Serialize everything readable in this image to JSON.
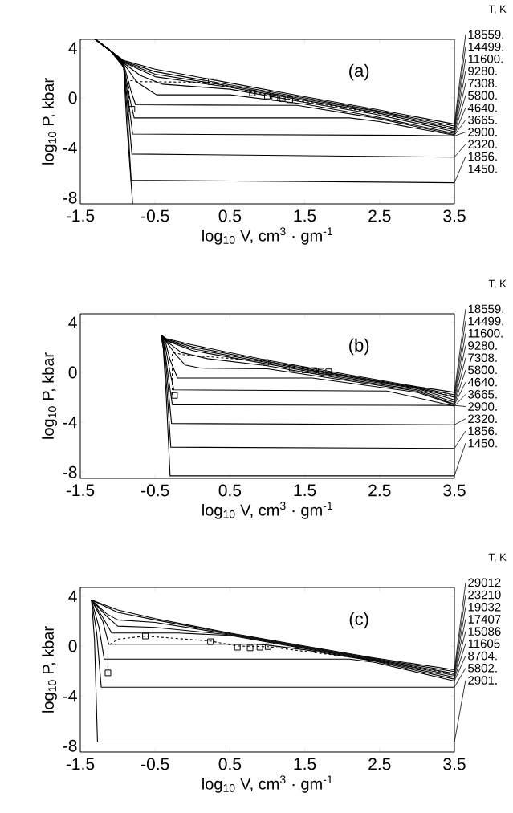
{
  "chart_data": [
    {
      "type": "line",
      "legend": "right",
      "annotations": [
        "(a)"
      ],
      "xlabel": "log$_{10}$ V, cm$^{3}$ · gm$^{-1}$",
      "ylabel": "log$_{10}$ P, kbar",
      "legend_title": "T, K",
      "xlim": [
        -1.5,
        3.5
      ],
      "ylim": [
        -8.5,
        4.7
      ],
      "xticks": [
        -1.5,
        -0.5,
        0.5,
        1.5,
        2.5,
        3.5
      ],
      "yticks": [
        -8,
        -4,
        0,
        4
      ],
      "series": [
        {
          "name": "18559.",
          "color": "#000000",
          "x": [
            -1.3,
            -1.1,
            -0.92,
            -0.5,
            0.5,
            1.5,
            2.44,
            3.5
          ],
          "values": [
            4.7,
            3.8,
            3.0,
            2.3,
            1.2,
            0.1,
            -0.9,
            -2.1
          ]
        },
        {
          "name": "14499.",
          "color": "#000000",
          "x": [
            -1.3,
            -1.1,
            -0.92,
            -0.5,
            0.5,
            1.5,
            2.44,
            3.5
          ],
          "values": [
            4.7,
            3.8,
            2.95,
            2.1,
            1.05,
            0.0,
            -1.0,
            -2.25
          ]
        },
        {
          "name": "11600.",
          "color": "#000000",
          "x": [
            -1.3,
            -1.1,
            -0.92,
            -0.5,
            0.5,
            1.5,
            2.44,
            3.5
          ],
          "values": [
            4.7,
            3.8,
            2.9,
            1.9,
            0.95,
            -0.1,
            -1.05,
            -2.4
          ]
        },
        {
          "name": "9280.",
          "color": "#000000",
          "x": [
            -1.3,
            -1.1,
            -0.92,
            -0.5,
            0.5,
            1.5,
            2.44,
            3.5
          ],
          "values": [
            4.7,
            3.8,
            2.85,
            1.7,
            0.85,
            -0.2,
            -1.15,
            -2.55
          ]
        },
        {
          "name": "7308.",
          "color": "#000000",
          "x": [
            -1.3,
            -1.1,
            -0.92,
            -0.7,
            -0.4,
            0.5,
            1.5,
            2.44,
            3.5
          ],
          "values": [
            4.7,
            3.8,
            2.8,
            1.8,
            1.1,
            0.7,
            -0.35,
            -1.3,
            -2.7
          ]
        },
        {
          "name": "5800.",
          "color": "#000000",
          "x": [
            -1.3,
            -1.1,
            -0.92,
            -0.75,
            -0.55,
            -0.48,
            0.5,
            1.5,
            2.44,
            3.5
          ],
          "values": [
            4.7,
            3.8,
            2.75,
            1.3,
            0.5,
            0.25,
            0.25,
            -0.5,
            -1.5,
            -2.85
          ]
        },
        {
          "name": "4640.",
          "color": "#000000",
          "x": [
            -1.3,
            -1.1,
            -0.92,
            -0.82,
            -0.76,
            1.4,
            2.44,
            3.5
          ],
          "values": [
            4.7,
            3.8,
            2.7,
            0.5,
            -0.55,
            -0.6,
            -1.6,
            -2.95
          ]
        },
        {
          "name": "3665.",
          "color": "#000000",
          "x": [
            -1.3,
            -1.1,
            -0.92,
            -0.84,
            -0.78,
            2.1,
            2.5,
            3.5
          ],
          "values": [
            4.7,
            3.8,
            2.65,
            0.0,
            -1.6,
            -1.6,
            -1.9,
            -3.0
          ]
        },
        {
          "name": "2900.",
          "color": "#000000",
          "x": [
            -1.3,
            -1.1,
            -0.92,
            -0.85,
            -0.8,
            2.9,
            3.5
          ],
          "values": [
            4.7,
            3.8,
            2.6,
            -0.5,
            -2.9,
            -3.0,
            -3.05
          ]
        },
        {
          "name": "2320.",
          "color": "#000000",
          "x": [
            -1.3,
            -1.1,
            -0.92,
            -0.86,
            -0.81,
            3.5
          ],
          "values": [
            4.7,
            3.8,
            2.55,
            -1.0,
            -4.5,
            -4.75
          ]
        },
        {
          "name": "1856.",
          "color": "#000000",
          "x": [
            -1.3,
            -1.1,
            -0.92,
            -0.87,
            -0.82,
            3.5
          ],
          "values": [
            4.7,
            3.8,
            2.5,
            -1.5,
            -6.6,
            -6.8
          ]
        },
        {
          "name": "1450.",
          "color": "#000000",
          "x": [
            -1.3,
            -1.1,
            -0.92,
            -0.88,
            -0.8
          ],
          "values": [
            4.7,
            3.8,
            2.45,
            -2.0,
            -8.5
          ]
        },
        {
          "type": "line",
          "line_style": "dashed",
          "color": "#000000",
          "x": [
            -0.85,
            -0.85,
            -0.7,
            0.25,
            0.8,
            1.3,
            2.44,
            3.5
          ],
          "values": [
            -0.8,
            1.4,
            1.3,
            1.25,
            0.45,
            -0.1,
            -1.2,
            -2.5
          ]
        },
        {
          "type": "scatter",
          "marker": "square",
          "color": "#000000",
          "x": [
            -0.81,
            0.25,
            0.8,
            1.0,
            1.1,
            1.2,
            1.3
          ],
          "values": [
            -0.9,
            1.3,
            0.4,
            0.15,
            0.05,
            -0.05,
            -0.15
          ]
        }
      ]
    },
    {
      "type": "line",
      "legend": "right",
      "annotations": [
        "(b)"
      ],
      "xlabel": "log$_{10}$ V, cm$^{3}$ · gm$^{-1}$",
      "ylabel": "log$_{10}$ P, kbar",
      "legend_title": "T, K",
      "xlim": [
        -1.5,
        3.5
      ],
      "ylim": [
        -8.5,
        4.7
      ],
      "xticks": [
        -1.5,
        -0.5,
        0.5,
        1.5,
        2.5,
        3.5
      ],
      "yticks": [
        -8,
        -4,
        0,
        4
      ],
      "series": [
        {
          "name": "18559.",
          "color": "#000000",
          "x": [
            -0.42,
            -0.35,
            0.0,
            0.98,
            2.0,
            3.0,
            3.5
          ],
          "values": [
            3.0,
            2.7,
            2.2,
            1.0,
            -0.1,
            -1.15,
            -1.6
          ]
        },
        {
          "name": "14499.",
          "color": "#000000",
          "x": [
            -0.42,
            -0.35,
            0.0,
            0.98,
            2.0,
            3.0,
            3.5
          ],
          "values": [
            3.0,
            2.65,
            2.05,
            0.9,
            -0.2,
            -1.2,
            -1.8
          ]
        },
        {
          "name": "11600.",
          "color": "#000000",
          "x": [
            -0.42,
            -0.35,
            0.0,
            0.98,
            2.0,
            3.0,
            3.5
          ],
          "values": [
            3.0,
            2.6,
            1.9,
            0.8,
            -0.3,
            -1.25,
            -2.0
          ]
        },
        {
          "name": "9280.",
          "color": "#000000",
          "x": [
            -0.42,
            -0.35,
            0.0,
            0.98,
            2.0,
            3.0,
            3.5
          ],
          "values": [
            3.0,
            2.55,
            1.75,
            0.7,
            -0.4,
            -1.3,
            -2.2
          ]
        },
        {
          "name": "7308.",
          "color": "#000000",
          "x": [
            -0.42,
            -0.35,
            -0.15,
            0.2,
            0.98,
            2.0,
            3.0,
            3.5
          ],
          "values": [
            3.0,
            2.5,
            1.6,
            1.1,
            0.55,
            -0.5,
            -1.4,
            -2.4
          ]
        },
        {
          "name": "5800.",
          "color": "#000000",
          "x": [
            -0.42,
            -0.35,
            -0.22,
            -0.1,
            0.1,
            0.98,
            2.0,
            3.0,
            3.5
          ],
          "values": [
            3.0,
            2.45,
            1.4,
            0.6,
            0.35,
            0.3,
            -0.6,
            -1.5,
            -2.55
          ]
        },
        {
          "name": "4640.",
          "color": "#000000",
          "x": [
            -0.42,
            -0.36,
            -0.3,
            -0.2,
            1.6,
            3.0,
            3.5
          ],
          "values": [
            3.0,
            2.4,
            1.0,
            -0.45,
            -0.45,
            -1.6,
            -2.6
          ]
        },
        {
          "name": "3665.",
          "color": "#000000",
          "x": [
            -0.42,
            -0.37,
            -0.3,
            -0.25,
            2.6,
            3.5
          ],
          "values": [
            3.0,
            2.3,
            0.0,
            -1.4,
            -1.5,
            -2.7
          ]
        },
        {
          "name": "2900.",
          "color": "#000000",
          "x": [
            -0.42,
            -0.38,
            -0.32,
            -0.27,
            3.5
          ],
          "values": [
            3.0,
            2.2,
            -0.5,
            -2.6,
            -2.65
          ]
        },
        {
          "name": "2320.",
          "color": "#000000",
          "x": [
            -0.42,
            -0.38,
            -0.33,
            -0.28,
            3.5
          ],
          "values": [
            3.0,
            2.1,
            -1.0,
            -4.1,
            -4.2
          ]
        },
        {
          "name": "1856.",
          "color": "#000000",
          "x": [
            -0.42,
            -0.39,
            -0.34,
            -0.29,
            3.5
          ],
          "values": [
            3.0,
            2.0,
            -1.5,
            -6.0,
            -6.1
          ]
        },
        {
          "name": "1450.",
          "color": "#000000",
          "x": [
            -0.42,
            -0.39,
            -0.35,
            -0.3,
            3.5
          ],
          "values": [
            3.0,
            1.9,
            -2.0,
            -8.3,
            -8.3
          ]
        },
        {
          "type": "line",
          "line_style": "dashed",
          "color": "#000000",
          "x": [
            -0.27,
            -0.27,
            -0.1,
            0.98,
            1.5,
            2.2,
            3.0,
            3.5
          ],
          "values": [
            -1.8,
            1.6,
            1.4,
            0.9,
            0.25,
            -0.4,
            -1.3,
            -1.9
          ]
        },
        {
          "type": "scatter",
          "marker": "square",
          "color": "#000000",
          "x": [
            -0.24,
            0.98,
            1.33,
            1.5,
            1.62,
            1.72,
            1.82
          ],
          "values": [
            -1.85,
            0.8,
            0.35,
            0.2,
            0.15,
            0.1,
            0.05
          ]
        }
      ]
    },
    {
      "type": "line",
      "legend": "right",
      "annotations": [
        "(c)"
      ],
      "xlabel": "log$_{10}$ V, cm$^{3}$ · gm$^{-1}$",
      "ylabel": "log$_{10}$ P, kbar",
      "legend_title": "T, K",
      "xlim": [
        -1.5,
        3.5
      ],
      "ylim": [
        -8.5,
        4.7
      ],
      "xticks": [
        -1.5,
        -0.5,
        0.5,
        1.5,
        2.5,
        3.5
      ],
      "yticks": [
        -8,
        -4,
        0,
        4
      ],
      "series": [
        {
          "name": "29012",
          "color": "#000000",
          "x": [
            -1.35,
            -1.0,
            -0.5,
            0.5,
            1.5,
            2.43,
            3.5
          ],
          "values": [
            3.7,
            2.9,
            2.2,
            1.05,
            0.0,
            -0.95,
            -1.9
          ]
        },
        {
          "name": "23210",
          "color": "#000000",
          "x": [
            -1.35,
            -1.0,
            -0.5,
            0.5,
            1.5,
            2.43,
            3.5
          ],
          "values": [
            3.7,
            2.7,
            2.1,
            1.0,
            -0.05,
            -1.0,
            -2.05
          ]
        },
        {
          "name": "19032",
          "color": "#000000",
          "x": [
            -1.35,
            -1.15,
            -1.0,
            -0.5,
            0.5,
            1.5,
            2.43,
            3.5
          ],
          "values": [
            3.7,
            2.6,
            2.1,
            1.9,
            0.95,
            -0.1,
            -1.05,
            -2.2
          ]
        },
        {
          "name": "17407",
          "color": "#000000",
          "x": [
            -1.35,
            -1.15,
            -1.0,
            -0.5,
            0.5,
            1.5,
            2.43,
            3.5
          ],
          "values": [
            3.7,
            2.4,
            1.6,
            1.5,
            0.9,
            -0.15,
            -1.1,
            -2.35
          ]
        },
        {
          "name": "15086",
          "color": "#000000",
          "x": [
            -1.35,
            -1.2,
            -1.08,
            -0.2,
            0.5,
            1.5,
            2.43,
            3.5
          ],
          "values": [
            3.7,
            2.3,
            1.05,
            1.05,
            0.85,
            -0.2,
            -1.15,
            -2.5
          ]
        },
        {
          "name": "11605",
          "color": "#000000",
          "x": [
            -1.35,
            -1.2,
            -1.12,
            0.9,
            1.5,
            2.43,
            3.5
          ],
          "values": [
            3.7,
            2.0,
            0.15,
            0.15,
            -0.3,
            -1.2,
            -2.65
          ]
        },
        {
          "name": "8704.",
          "color": "#000000",
          "x": [
            -1.35,
            -1.25,
            -1.18,
            2.1,
            2.43,
            3.5
          ],
          "values": [
            3.7,
            1.5,
            -1.05,
            -1.05,
            -1.3,
            -2.8
          ]
        },
        {
          "name": "5802.",
          "color": "#000000",
          "x": [
            -1.35,
            -1.28,
            -1.22,
            3.5
          ],
          "values": [
            3.7,
            1.0,
            -3.3,
            -3.3
          ]
        },
        {
          "name": "2901.",
          "color": "#000000",
          "x": [
            -1.35,
            -1.31,
            -1.27,
            3.5
          ],
          "values": [
            3.7,
            0.5,
            -7.7,
            -7.7
          ]
        },
        {
          "type": "line",
          "line_style": "dashed",
          "color": "#000000",
          "x": [
            -1.13,
            -1.13,
            -1.0,
            -0.63,
            0.24,
            0.6,
            1.0,
            2.0,
            2.43,
            3.5
          ],
          "values": [
            -2.1,
            0.0,
            0.55,
            0.8,
            0.4,
            0.0,
            -0.05,
            -0.8,
            -1.1,
            -2.27
          ]
        },
        {
          "type": "scatter",
          "marker": "square",
          "color": "#000000",
          "x": [
            -1.13,
            -0.63,
            0.24,
            0.6,
            0.77,
            0.9,
            1.01
          ],
          "values": [
            -2.15,
            0.8,
            0.35,
            -0.1,
            -0.15,
            -0.1,
            -0.05
          ]
        }
      ]
    }
  ]
}
